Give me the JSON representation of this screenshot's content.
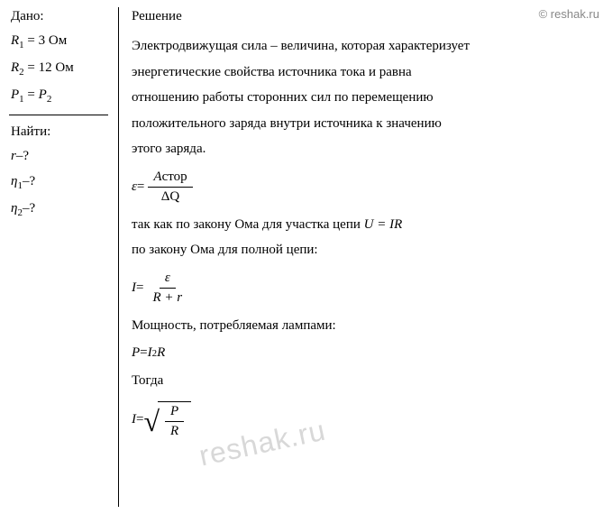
{
  "watermark_corner": "© reshak.ru",
  "watermark_center": "reshak.ru",
  "left": {
    "given_label": "Дано:",
    "r1": {
      "symbol": "R",
      "sub": "1",
      "eq": " = 3 ",
      "unit": "Ом"
    },
    "r2": {
      "symbol": "R",
      "sub": "2",
      "eq": " = 12 ",
      "unit": "Ом"
    },
    "p_eq": {
      "l_symbol": "P",
      "l_sub": "1",
      "mid": " = ",
      "r_symbol": "P",
      "r_sub": "2"
    },
    "find_label": "Найти:",
    "f1": {
      "symbol": "r",
      "suffix": "–?"
    },
    "f2": {
      "symbol": "η",
      "sub": "1",
      "suffix": "–?"
    },
    "f3": {
      "symbol": "η",
      "sub": "2",
      "suffix": "–?"
    }
  },
  "right": {
    "sol_label": "Решение",
    "line1": "Электродвижущая сила – величина, которая характеризует",
    "line2": "энергетические свойства источника тока и равна",
    "line3": "отношению работы сторонних сил по перемещению",
    "line4": "положительного заряда внутри источника к значению",
    "line5": "этого заряда.",
    "emf_formula": {
      "lhs": "ε",
      "eq": " = ",
      "num_sym": "A",
      "num_sub": "стор",
      "den": "ΔQ"
    },
    "line6_a": "так как по закону Ома для участка цепи ",
    "line6_b": "U = IR",
    "line7": "по закону Ома для полной цепи:",
    "current_formula": {
      "lhs": "I",
      "eq": " = ",
      "num": "ε",
      "den": "R + r"
    },
    "line8": "Мощность, потребляемая лампами:",
    "power_formula": {
      "lhs": "P",
      "eq": " = ",
      "rhs_a": "I",
      "rhs_exp": "2",
      "rhs_b": "R"
    },
    "line9": "Тогда",
    "i_formula": {
      "lhs": "I",
      "eq": " = ",
      "num": "P",
      "den": "R"
    }
  },
  "colors": {
    "text": "#000000",
    "bg": "#ffffff",
    "watermark_light": "#d8d8d8",
    "watermark_corner": "#888888"
  }
}
